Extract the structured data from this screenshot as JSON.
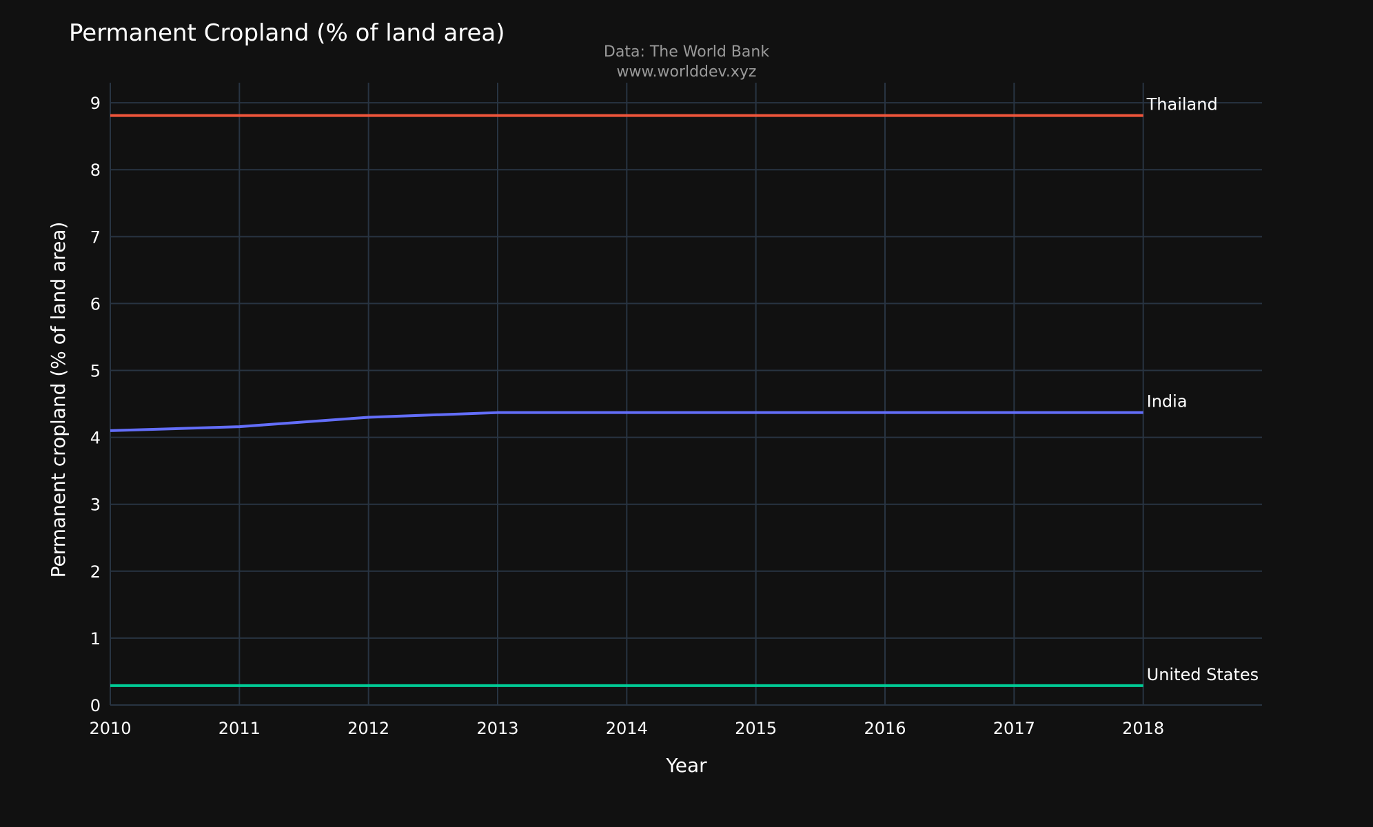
{
  "chart_data": {
    "type": "line",
    "title": "Permanent Cropland (% of land area)",
    "subtitle_lines": [
      "Data: The World Bank",
      "www.worlddev.xyz"
    ],
    "xlabel": "Year",
    "ylabel": "Permanent cropland (% of land area)",
    "x": [
      2010,
      2011,
      2012,
      2013,
      2014,
      2015,
      2016,
      2017,
      2018
    ],
    "x_ticks": [
      "2010",
      "2011",
      "2012",
      "2013",
      "2014",
      "2015",
      "2016",
      "2017",
      "2018"
    ],
    "y_ticks": [
      "0",
      "1",
      "2",
      "3",
      "4",
      "5",
      "6",
      "7",
      "8",
      "9"
    ],
    "xlim": [
      2010,
      2018.92
    ],
    "ylim": [
      0,
      9.3
    ],
    "grid": true,
    "legend": "none (series labeled at line ends)",
    "series": [
      {
        "name": "Thailand",
        "color": "#ef553b",
        "values": [
          8.81,
          8.81,
          8.81,
          8.81,
          8.81,
          8.81,
          8.81,
          8.81,
          8.81
        ]
      },
      {
        "name": "India",
        "color": "#636efa",
        "values": [
          4.1,
          4.16,
          4.3,
          4.37,
          4.37,
          4.37,
          4.37,
          4.37,
          4.37
        ]
      },
      {
        "name": "United States",
        "color": "#00cc96",
        "values": [
          0.29,
          0.29,
          0.29,
          0.29,
          0.29,
          0.29,
          0.29,
          0.29,
          0.29
        ]
      }
    ]
  },
  "colors": {
    "background": "#111111",
    "grid": "#283442",
    "text": "#ffffff",
    "subtitle": "#9a9a9a"
  }
}
